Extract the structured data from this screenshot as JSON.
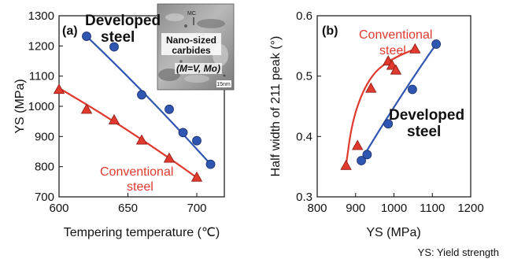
{
  "chart_data": [
    {
      "panel_label": "(a)",
      "type": "scatter",
      "xlabel": "Tempering temperature (℃)",
      "ylabel": "YS (MPa)",
      "xlim": [
        600,
        720
      ],
      "ylim": [
        700,
        1300
      ],
      "xticks": [
        "600",
        "650",
        "700"
      ],
      "yticks": [
        "700",
        "800",
        "900",
        "1000",
        "1100",
        "1200",
        "1300"
      ],
      "grid": false,
      "series": [
        {
          "name": "Developed steel",
          "name_lines": [
            "Developed",
            "steel"
          ],
          "marker": "circle",
          "color": "#2f56b0",
          "x": [
            620,
            640,
            660,
            680,
            690,
            700,
            710
          ],
          "y": [
            1232,
            1197,
            1038,
            990,
            913,
            886,
            808
          ],
          "fit_x": [
            620,
            710
          ],
          "fit_y": [
            1232,
            808
          ]
        },
        {
          "name": "Conventional steel",
          "name_lines": [
            "Conventional",
            "steel"
          ],
          "marker": "triangle",
          "color": "#e03a2f",
          "x": [
            600,
            620,
            640,
            660,
            680,
            700
          ],
          "y": [
            1056,
            990,
            955,
            888,
            828,
            765
          ],
          "fit_x": [
            600,
            700
          ],
          "fit_y": [
            1060,
            764
          ]
        }
      ],
      "inset": {
        "label_mc": "MC",
        "title_lines": [
          "Nano-sized",
          "carbides"
        ],
        "subtitle": "(M=V, Mo)",
        "scale": "15nm"
      }
    },
    {
      "panel_label": "(b)",
      "type": "scatter",
      "xlabel": "YS (MPa)",
      "ylabel": "Half width of 211 peak (°)",
      "xlim": [
        800,
        1200
      ],
      "ylim": [
        0.3,
        0.6
      ],
      "xticks": [
        "800",
        "900",
        "1000",
        "1100",
        "1200"
      ],
      "yticks": [
        "0.3",
        "0.4",
        "0.5",
        "0.6"
      ],
      "grid": false,
      "series": [
        {
          "name": "Developed steel",
          "name_lines": [
            "Developed",
            "steel"
          ],
          "marker": "circle",
          "color": "#2f56b0",
          "x": [
            915,
            930,
            985,
            1048,
            1110
          ],
          "y": [
            0.36,
            0.37,
            0.421,
            0.478,
            0.553
          ],
          "fit_x": [
            910,
            1110
          ],
          "fit_y": [
            0.356,
            0.553
          ]
        },
        {
          "name": "Conventional steel",
          "name_lines": [
            "Conventional",
            "steel"
          ],
          "marker": "triangle",
          "color": "#e03a2f",
          "x": [
            875,
            905,
            940,
            985,
            995,
            1005,
            1055
          ],
          "y": [
            0.352,
            0.385,
            0.48,
            0.525,
            0.518,
            0.51,
            0.545
          ],
          "fit_x": [
            875,
            890,
            915,
            945,
            975,
            1010,
            1055
          ],
          "fit_y": [
            0.352,
            0.42,
            0.47,
            0.503,
            0.52,
            0.533,
            0.545
          ]
        }
      ]
    }
  ],
  "footnote": "YS: Yield strength"
}
